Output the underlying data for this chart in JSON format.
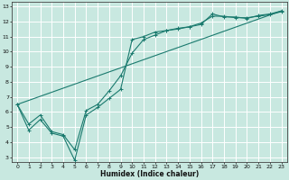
{
  "title": "",
  "xlabel": "Humidex (Indice chaleur)",
  "ylabel": "",
  "bg_color": "#c8e8e0",
  "grid_color": "#ffffff",
  "line_color": "#1a7a6e",
  "xlim": [
    -0.5,
    23.5
  ],
  "ylim": [
    2.7,
    13.3
  ],
  "xticks": [
    0,
    1,
    2,
    3,
    4,
    5,
    6,
    7,
    8,
    9,
    10,
    11,
    12,
    13,
    14,
    15,
    16,
    17,
    18,
    19,
    20,
    21,
    22,
    23
  ],
  "yticks": [
    3,
    4,
    5,
    6,
    7,
    8,
    9,
    10,
    11,
    12,
    13
  ],
  "line1_x": [
    0,
    1,
    2,
    3,
    4,
    5,
    6,
    7,
    8,
    9,
    10,
    11,
    12,
    13,
    14,
    15,
    16,
    17,
    18,
    19,
    20,
    21,
    22,
    23
  ],
  "line1_y": [
    6.5,
    4.8,
    5.5,
    4.6,
    4.4,
    2.8,
    5.8,
    6.3,
    6.9,
    7.5,
    10.8,
    11.0,
    11.3,
    11.4,
    11.5,
    11.65,
    11.8,
    12.5,
    12.3,
    12.3,
    12.2,
    12.4,
    12.5,
    12.7
  ],
  "line2_x": [
    0,
    1,
    2,
    3,
    4,
    5,
    6,
    7,
    8,
    9,
    10,
    11,
    12,
    13,
    14,
    15,
    16,
    17,
    18,
    19,
    20,
    21,
    22,
    23
  ],
  "line2_y": [
    6.5,
    5.2,
    5.8,
    4.7,
    4.5,
    3.5,
    6.1,
    6.5,
    7.4,
    8.4,
    9.9,
    10.8,
    11.1,
    11.4,
    11.55,
    11.65,
    11.9,
    12.35,
    12.35,
    12.25,
    12.25,
    12.35,
    12.45,
    12.65
  ],
  "line3_x": [
    0,
    23
  ],
  "line3_y": [
    6.5,
    12.7
  ]
}
